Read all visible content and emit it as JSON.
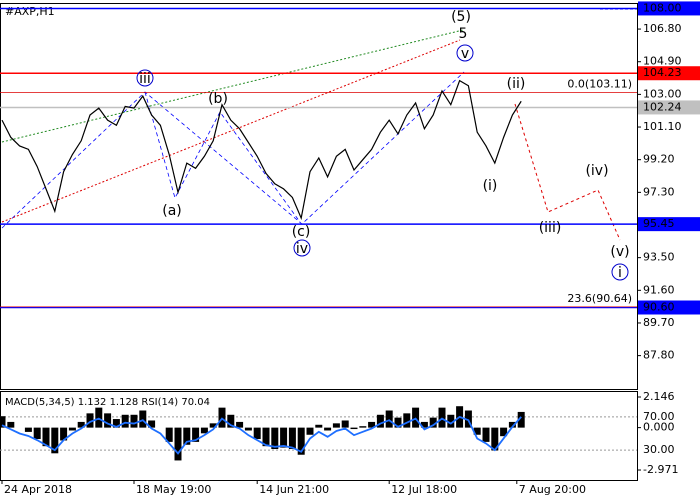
{
  "chart_data": {
    "type": "line",
    "title": "#AXP,H1",
    "color": "#000000",
    "values": [
      101.5,
      100.5,
      100,
      99.8,
      98.8,
      97.5,
      96.2,
      98.5,
      99.5,
      100.3,
      101.8,
      102.2,
      101.5,
      101.2,
      102.3,
      102.2,
      102.9,
      101.8,
      101.2,
      99.5,
      97.3,
      99,
      98.7,
      99.4,
      100.3,
      102.4,
      101.5,
      101,
      100.2,
      99.4,
      98.4,
      97.8,
      97.5,
      97,
      95.8,
      98.5,
      99.3,
      98.2,
      99.4,
      99.8,
      98.6,
      99.2,
      99.8,
      100.8,
      101.5,
      100.7,
      101.8,
      102.5,
      101,
      101.8,
      103.2,
      102.4,
      103.8,
      103.5,
      100.8,
      100,
      99,
      100.5,
      101.8,
      102.6
    ],
    "xticks": [
      {
        "value": 0,
        "label": "24 Apr 2018"
      },
      {
        "value": 15,
        "label": "18 May 19:00"
      },
      {
        "value": 29,
        "label": "14 Jun 21:00"
      },
      {
        "value": 44,
        "label": "12 Jul 18:00"
      },
      {
        "value": 58.5,
        "label": "7 Aug 20:00"
      }
    ],
    "ylim": [
      85.8,
      108.2
    ],
    "yticks": [
      {
        "value": 106.8,
        "label": "106.80"
      },
      {
        "value": 104.9,
        "label": "104.90"
      },
      {
        "value": 103,
        "label": "103.00"
      },
      {
        "value": 101.1,
        "label": "101.10"
      },
      {
        "value": 99.2,
        "label": "99.20"
      },
      {
        "value": 97.3,
        "label": "97.30"
      },
      {
        "value": 93.5,
        "label": "93.50"
      },
      {
        "value": 91.6,
        "label": "91.60"
      },
      {
        "value": 89.7,
        "label": "89.70"
      },
      {
        "value": 87.8,
        "label": "87.80"
      }
    ],
    "levels": [
      {
        "value": 108,
        "label": "108.00",
        "color": "#0000ff"
      },
      {
        "value": 104.23,
        "label": "104.23",
        "color": "#ff0000"
      },
      {
        "value": 102.24,
        "label": "102.24",
        "color": "#c0c0c0"
      },
      {
        "value": 95.45,
        "label": "95.45",
        "color": "#0000ff"
      },
      {
        "value": 90.6,
        "label": "90.60",
        "color": "#0000ff"
      }
    ],
    "fibo": [
      {
        "value": 103.11,
        "label": "0.0(103.11)"
      },
      {
        "value": 90.64,
        "label": "23.6(90.64)"
      }
    ],
    "annotations": [
      {
        "text": "iii",
        "color": "#0000cc",
        "circled": true
      },
      {
        "text": "(b)",
        "color": "#dd0000",
        "circled": false
      },
      {
        "text": "(a)",
        "color": "#dd0000",
        "circled": false
      },
      {
        "text": "(c)",
        "color": "#dd0000",
        "circled": false
      },
      {
        "text": "iv",
        "color": "#0000cc",
        "circled": true
      },
      {
        "text": "v",
        "color": "#0000cc",
        "circled": true
      },
      {
        "text": "(5)",
        "color": "#228b22",
        "circled": false
      },
      {
        "text": "5",
        "color": "#dd0000",
        "circled": false
      },
      {
        "text": "(ii)",
        "color": "#dd0000",
        "circled": false
      },
      {
        "text": "(i)",
        "color": "#dd0000",
        "circled": false
      },
      {
        "text": "(iii)",
        "color": "#dd0000",
        "circled": false
      },
      {
        "text": "(iv)",
        "color": "#dd0000",
        "circled": false
      },
      {
        "text": "(v)",
        "color": "#dd0000",
        "circled": false
      },
      {
        "text": "i",
        "color": "#0000cc",
        "circled": true
      }
    ],
    "indicator": {
      "title": "MACD(5,34,5) 1.132 1.128 RSI(14) 70.04",
      "macd": {
        "color": "#000000",
        "values": [
          0.8,
          0.4,
          0,
          -0.3,
          -0.8,
          -1.3,
          -1.8,
          -0.9,
          -0.2,
          0.4,
          1.0,
          1.4,
          1.0,
          0.6,
          0.9,
          0.9,
          1.2,
          0.5,
          0,
          -1.0,
          -2.3,
          -1.2,
          -1.0,
          -0.4,
          0.3,
          1.4,
          0.9,
          0.4,
          -0.2,
          -0.8,
          -1.3,
          -1.5,
          -1.4,
          -1.5,
          -1.9,
          -0.5,
          0.2,
          -0.2,
          0.3,
          0.5,
          -0.1,
          0.1,
          0.4,
          0.9,
          1.2,
          0.7,
          1.0,
          1.4,
          0.4,
          0.7,
          1.4,
          0.9,
          1.5,
          1.2,
          -0.5,
          -1.0,
          -1.6,
          -0.6,
          0.4,
          1.1
        ]
      },
      "macd_lim": [
        -3.4,
        2.4
      ],
      "macd_ticks": [
        {
          "value": 2.146,
          "label": "2.146"
        },
        {
          "value": 0,
          "label": "0.000"
        },
        {
          "value": -2.971,
          "label": "-2.971"
        }
      ],
      "rsi": {
        "color": "#1e6fff",
        "values": [
          60,
          55,
          50,
          47,
          42,
          36,
          30,
          42,
          50,
          56,
          64,
          68,
          62,
          58,
          63,
          62,
          66,
          56,
          50,
          38,
          26,
          40,
          42,
          48,
          55,
          68,
          60,
          56,
          48,
          42,
          36,
          34,
          35,
          33,
          28,
          44,
          52,
          46,
          53,
          56,
          48,
          52,
          56,
          62,
          66,
          58,
          63,
          68,
          55,
          60,
          68,
          62,
          70,
          66,
          44,
          38,
          30,
          44,
          58,
          70
        ]
      },
      "rsi_lim": [
        0,
        100
      ],
      "rsi_ticks": [
        {
          "value": 70,
          "label": "70.00"
        },
        {
          "value": 30,
          "label": "30.00"
        }
      ]
    }
  }
}
